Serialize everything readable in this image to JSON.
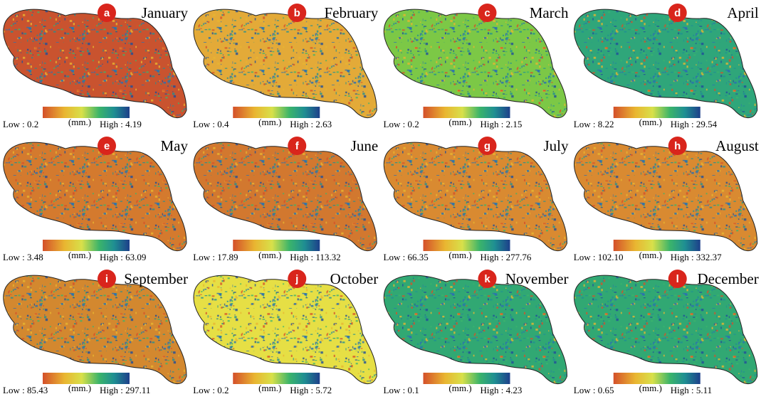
{
  "figure": {
    "unit": "(mm.)",
    "panels": [
      {
        "letter": "a",
        "month": "January",
        "low": "Low : 0.2",
        "high": "High : 4.19",
        "color": "#c9532f"
      },
      {
        "letter": "b",
        "month": "February",
        "low": "Low : 0.4",
        "high": "High : 2.63",
        "color": "#e3aa38"
      },
      {
        "letter": "c",
        "month": "March",
        "low": "Low : 0.2",
        "high": "High : 2.15",
        "color": "#7cc846"
      },
      {
        "letter": "d",
        "month": "April",
        "low": "Low : 8.22",
        "high": "High : 29.54",
        "color": "#2fa67a"
      },
      {
        "letter": "e",
        "month": "May",
        "low": "Low : 3.48",
        "high": "High : 63.09",
        "color": "#d47a2e"
      },
      {
        "letter": "f",
        "month": "June",
        "low": "Low : 17.89",
        "high": "High : 113.32",
        "color": "#d2782f"
      },
      {
        "letter": "g",
        "month": "July",
        "low": "Low : 66.35",
        "high": "High : 277.76",
        "color": "#d98a31"
      },
      {
        "letter": "h",
        "month": "August",
        "low": "Low : 102.10",
        "high": "High : 332.37",
        "color": "#d98a31"
      },
      {
        "letter": "i",
        "month": "September",
        "low": "Low : 85.43",
        "high": "High : 297.11",
        "color": "#d3882f"
      },
      {
        "letter": "j",
        "month": "October",
        "low": "Low : 0.2",
        "high": "High : 5.72",
        "color": "#e6df45"
      },
      {
        "letter": "k",
        "month": "November",
        "low": "Low : 0.1",
        "high": "High : 4.23",
        "color": "#31a873"
      },
      {
        "letter": "l",
        "month": "December",
        "low": "Low : 0.65",
        "high": "High : 5.11",
        "color": "#31a873"
      }
    ]
  }
}
